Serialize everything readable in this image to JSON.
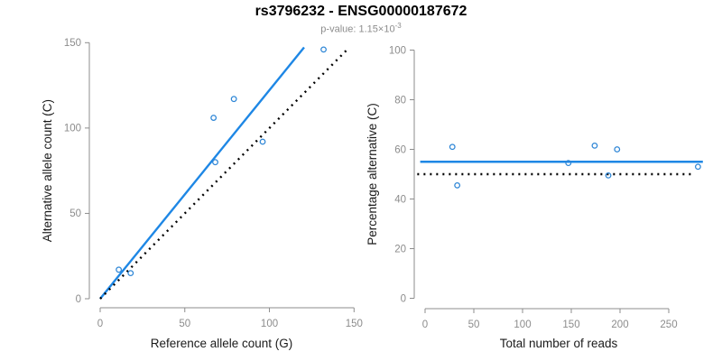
{
  "header": {
    "title": "rs3796232 - ENSG00000187672",
    "pvalue_text": "p-value: 1.15×10",
    "pvalue_exponent": "-3"
  },
  "colors": {
    "line_blue": "#1E87E5",
    "marker_blue": "#2E86D6",
    "dotted_black": "#000000",
    "axis_gray": "#8C8C8C",
    "label_black": "#1A1A1A"
  },
  "chart_data": [
    {
      "type": "scatter",
      "name": "allele-counts",
      "xlabel": "Reference allele count (G)",
      "ylabel": "Alternative allele count (C)",
      "xlim": [
        0,
        150
      ],
      "ylim": [
        0,
        150
      ],
      "xticks": [
        0,
        50,
        100,
        150
      ],
      "yticks": [
        0,
        50,
        100,
        150
      ],
      "grid": false,
      "points": [
        [
          11,
          17
        ],
        [
          18,
          15
        ],
        [
          67,
          106
        ],
        [
          68,
          80
        ],
        [
          79,
          117
        ],
        [
          96,
          92
        ],
        [
          132,
          146
        ]
      ],
      "lines": [
        {
          "name": "fit-line",
          "style": "solid",
          "color": "#1E87E5",
          "slope": 1.222,
          "intercept": 0,
          "x_range": [
            0,
            120.5
          ]
        },
        {
          "name": "identity-line",
          "style": "dotted",
          "color": "#000000",
          "slope": 1,
          "intercept": 0,
          "x_range": [
            0,
            146
          ]
        }
      ]
    },
    {
      "type": "scatter",
      "name": "percentage-vs-coverage",
      "xlabel": "Total number of reads",
      "ylabel": "Percentage alternative (C)",
      "xlim": [
        0,
        285
      ],
      "ylim": [
        0,
        100
      ],
      "xticks": [
        0,
        50,
        100,
        150,
        200,
        250
      ],
      "yticks": [
        0,
        20,
        40,
        60,
        80,
        100
      ],
      "grid": false,
      "points": [
        [
          28,
          61
        ],
        [
          33,
          45.5
        ],
        [
          147,
          54.5
        ],
        [
          174,
          61.5
        ],
        [
          188,
          49.5
        ],
        [
          197,
          60
        ],
        [
          280,
          53
        ]
      ],
      "lines": [
        {
          "name": "mean-percentage-line",
          "style": "solid",
          "color": "#1E87E5",
          "y": 55,
          "x_range": [
            -5,
            285
          ]
        },
        {
          "name": "expected-50pct-line",
          "style": "dotted",
          "color": "#000000",
          "y": 50,
          "x_range": [
            -8,
            277
          ]
        }
      ]
    }
  ]
}
